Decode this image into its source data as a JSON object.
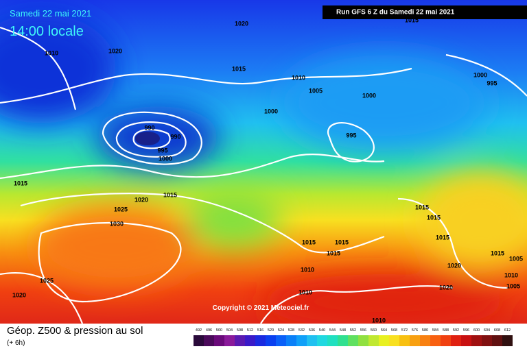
{
  "header": {
    "date": "Samedi 22 mai 2021",
    "time": "14:00 locale",
    "run": "Run GFS 6 Z du Samedi 22 mai 2021"
  },
  "copyright": "Copyright © 2021 Meteociel.fr",
  "footer": {
    "title": "Géop. Z500 & pression au sol",
    "subtitle": "(+ 6h)"
  },
  "legend": {
    "ticks": [
      492,
      496,
      500,
      504,
      508,
      512,
      516,
      520,
      524,
      528,
      532,
      536,
      540,
      544,
      548,
      552,
      556,
      560,
      564,
      568,
      572,
      576,
      580,
      584,
      588,
      592,
      596,
      600,
      604,
      608,
      612
    ],
    "colors": [
      "#2a0a3a",
      "#4a0a5a",
      "#6a0a7a",
      "#8a1a9a",
      "#5a1ab0",
      "#3a1ac8",
      "#1a2ae0",
      "#0a40f0",
      "#0a60f8",
      "#0a80f8",
      "#10a0f8",
      "#20c0f0",
      "#20d8e0",
      "#20e0c0",
      "#30e090",
      "#60e060",
      "#90e040",
      "#c0e830",
      "#e8f020",
      "#f8e020",
      "#f8c010",
      "#f8a010",
      "#f88010",
      "#f86010",
      "#f04010",
      "#e02010",
      "#c81010",
      "#a01010",
      "#801010",
      "#601010",
      "#301010"
    ]
  },
  "isobar_labels": [
    "1020",
    "1015",
    "1010",
    "1020",
    "1015",
    "1010",
    "1005",
    "1000",
    "995",
    "1000",
    "1000",
    "990",
    "990",
    "995",
    "1000",
    "995",
    "1015",
    "1020",
    "1015",
    "1025",
    "1030",
    "1015",
    "1015",
    "1015",
    "1015",
    "1015",
    "1015",
    "1015",
    "1020",
    "1010",
    "1005",
    "1010",
    "1005",
    "1025",
    "1020",
    "1010",
    "1020",
    "1010"
  ]
}
